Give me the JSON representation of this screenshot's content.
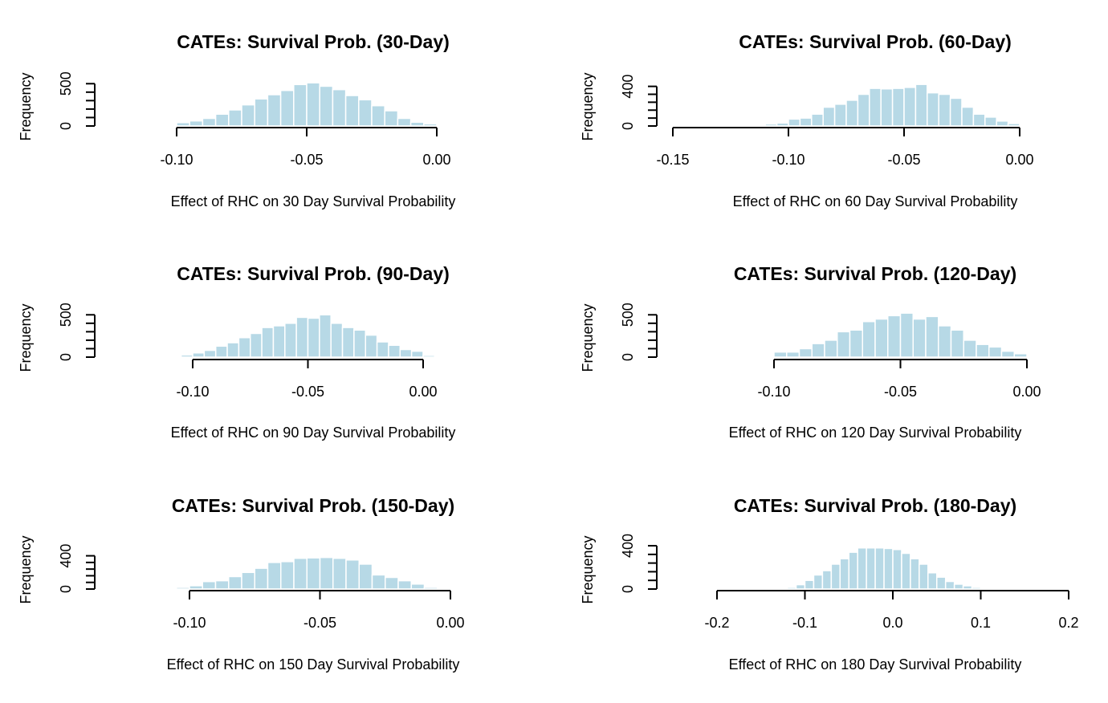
{
  "figure": {
    "bar_color": "#b7d9e6",
    "axis_color": "#000000"
  },
  "chart_data": [
    {
      "type": "bar",
      "title": "CATEs: Survival Prob. (30-Day)",
      "xlabel": "Effect of RHC on 30 Day Survival Probability",
      "ylabel": "Frequency",
      "xlim": [
        -0.11,
        0.01
      ],
      "ylim": [
        0,
        550
      ],
      "xticks": [
        -0.1,
        -0.05,
        0.0
      ],
      "xtick_labels": [
        "-0.10",
        "-0.05",
        "0.00"
      ],
      "yticks": [
        0,
        500
      ],
      "ytick_labels": [
        "0",
        "500"
      ],
      "bin_edges": [
        -0.105,
        -0.1,
        -0.095,
        -0.09,
        -0.085,
        -0.08,
        -0.075,
        -0.07,
        -0.065,
        -0.06,
        -0.055,
        -0.05,
        -0.045,
        -0.04,
        -0.035,
        -0.03,
        -0.025,
        -0.02,
        -0.015,
        -0.01,
        -0.005,
        0.0,
        0.005,
        0.01
      ],
      "values": [
        10,
        40,
        60,
        90,
        140,
        190,
        250,
        320,
        370,
        420,
        490,
        510,
        470,
        430,
        360,
        310,
        240,
        180,
        90,
        45,
        25,
        10,
        5
      ]
    },
    {
      "type": "bar",
      "title": "CATEs: Survival Prob. (60-Day)",
      "xlabel": "Effect of RHC on 60 Day Survival Probability",
      "ylabel": "Frequency",
      "xlim": [
        -0.15,
        0.005
      ],
      "ylim": [
        0,
        470
      ],
      "xticks": [
        -0.15,
        -0.1,
        -0.05,
        0.0
      ],
      "xtick_labels": [
        "-0.15",
        "-0.10",
        "-0.05",
        "0.00"
      ],
      "yticks": [
        0,
        400
      ],
      "ytick_labels": [
        "0",
        "400"
      ],
      "bin_edges": [
        -0.115,
        -0.11,
        -0.105,
        -0.1,
        -0.095,
        -0.09,
        -0.085,
        -0.08,
        -0.075,
        -0.07,
        -0.065,
        -0.06,
        -0.055,
        -0.05,
        -0.045,
        -0.04,
        -0.035,
        -0.03,
        -0.025,
        -0.02,
        -0.015,
        -0.01,
        -0.005,
        0.0,
        0.005
      ],
      "values": [
        10,
        20,
        30,
        70,
        80,
        120,
        190,
        220,
        260,
        320,
        380,
        375,
        380,
        390,
        420,
        335,
        320,
        280,
        190,
        120,
        90,
        50,
        25,
        8
      ]
    },
    {
      "type": "bar",
      "title": "CATEs: Survival Prob. (90-Day)",
      "xlabel": "Effect of RHC on 90 Day Survival Probability",
      "ylabel": "Frequency",
      "xlim": [
        -0.11,
        0.01
      ],
      "ylim": [
        0,
        550
      ],
      "xticks": [
        -0.1,
        -0.05,
        0.0
      ],
      "xtick_labels": [
        "-0.10",
        "-0.05",
        "0.00"
      ],
      "yticks": [
        0,
        500
      ],
      "ytick_labels": [
        "0",
        "500"
      ],
      "bin_edges": [
        -0.11,
        -0.105,
        -0.1,
        -0.095,
        -0.09,
        -0.085,
        -0.08,
        -0.075,
        -0.07,
        -0.065,
        -0.06,
        -0.055,
        -0.05,
        -0.045,
        -0.04,
        -0.035,
        -0.03,
        -0.025,
        -0.02,
        -0.015,
        -0.01,
        -0.005,
        0.0,
        0.005,
        0.01
      ],
      "values": [
        5,
        25,
        50,
        80,
        130,
        170,
        230,
        280,
        350,
        370,
        400,
        470,
        460,
        500,
        400,
        350,
        320,
        260,
        180,
        140,
        90,
        70,
        20,
        5
      ]
    },
    {
      "type": "bar",
      "title": "CATEs: Survival Prob. (120-Day)",
      "xlabel": "Effect of RHC on 120 Day Survival Probability",
      "ylabel": "Frequency",
      "xlim": [
        -0.1,
        0.0
      ],
      "ylim": [
        0,
        550
      ],
      "xticks": [
        -0.1,
        -0.05,
        0.0
      ],
      "xtick_labels": [
        "-0.10",
        "-0.05",
        "0.00"
      ],
      "yticks": [
        0,
        500
      ],
      "ytick_labels": [
        "0",
        "500"
      ],
      "bin_edges": [
        -0.105,
        -0.1,
        -0.095,
        -0.09,
        -0.085,
        -0.08,
        -0.075,
        -0.07,
        -0.065,
        -0.06,
        -0.055,
        -0.05,
        -0.045,
        -0.04,
        -0.035,
        -0.03,
        -0.025,
        -0.02,
        -0.015,
        -0.01,
        -0.005,
        0.0
      ],
      "values": [
        10,
        60,
        60,
        100,
        160,
        200,
        300,
        320,
        420,
        450,
        490,
        520,
        450,
        480,
        370,
        320,
        200,
        150,
        120,
        70,
        40
      ]
    },
    {
      "type": "bar",
      "title": "CATEs: Survival Prob. (150-Day)",
      "xlabel": "Effect of RHC on 150 Day Survival Probability",
      "ylabel": "Frequency",
      "xlim": [
        -0.11,
        0.005
      ],
      "ylim": [
        0,
        560
      ],
      "xticks": [
        -0.1,
        -0.05,
        0.0
      ],
      "xtick_labels": [
        "-0.10",
        "-0.05",
        "0.00"
      ],
      "yticks": [
        0,
        400
      ],
      "ytick_labels": [
        "0",
        "400"
      ],
      "bin_edges": [
        -0.11,
        -0.105,
        -0.1,
        -0.095,
        -0.09,
        -0.085,
        -0.08,
        -0.075,
        -0.07,
        -0.065,
        -0.06,
        -0.055,
        -0.05,
        -0.045,
        -0.04,
        -0.035,
        -0.03,
        -0.025,
        -0.02,
        -0.015,
        -0.01,
        -0.005,
        0.0,
        0.005
      ],
      "values": [
        5,
        20,
        40,
        90,
        100,
        150,
        200,
        250,
        320,
        330,
        370,
        375,
        380,
        370,
        350,
        300,
        170,
        140,
        100,
        60,
        20,
        10,
        5
      ]
    },
    {
      "type": "bar",
      "title": "CATEs: Survival Prob. (180-Day)",
      "xlabel": "Effect of RHC on 180 Day Survival Probability",
      "ylabel": "Frequency",
      "xlim": [
        -0.2,
        0.2
      ],
      "ylim": [
        0,
        430
      ],
      "xticks": [
        -0.2,
        -0.1,
        0.0,
        0.1,
        0.2
      ],
      "xtick_labels": [
        "-0.2",
        "-0.1",
        "0.0",
        "0.1",
        "0.2"
      ],
      "yticks": [
        0,
        400
      ],
      "ytick_labels": [
        "0",
        "400"
      ],
      "bin_edges": [
        -0.13,
        -0.12,
        -0.11,
        -0.1,
        -0.09,
        -0.08,
        -0.07,
        -0.06,
        -0.05,
        -0.04,
        -0.03,
        -0.02,
        -0.01,
        0.0,
        0.01,
        0.02,
        0.03,
        0.04,
        0.05,
        0.06,
        0.07,
        0.08,
        0.09,
        0.1,
        0.11
      ],
      "values": [
        5,
        15,
        40,
        80,
        130,
        170,
        230,
        280,
        340,
        380,
        380,
        380,
        375,
        365,
        330,
        280,
        230,
        150,
        110,
        70,
        45,
        30,
        15,
        5
      ]
    }
  ]
}
